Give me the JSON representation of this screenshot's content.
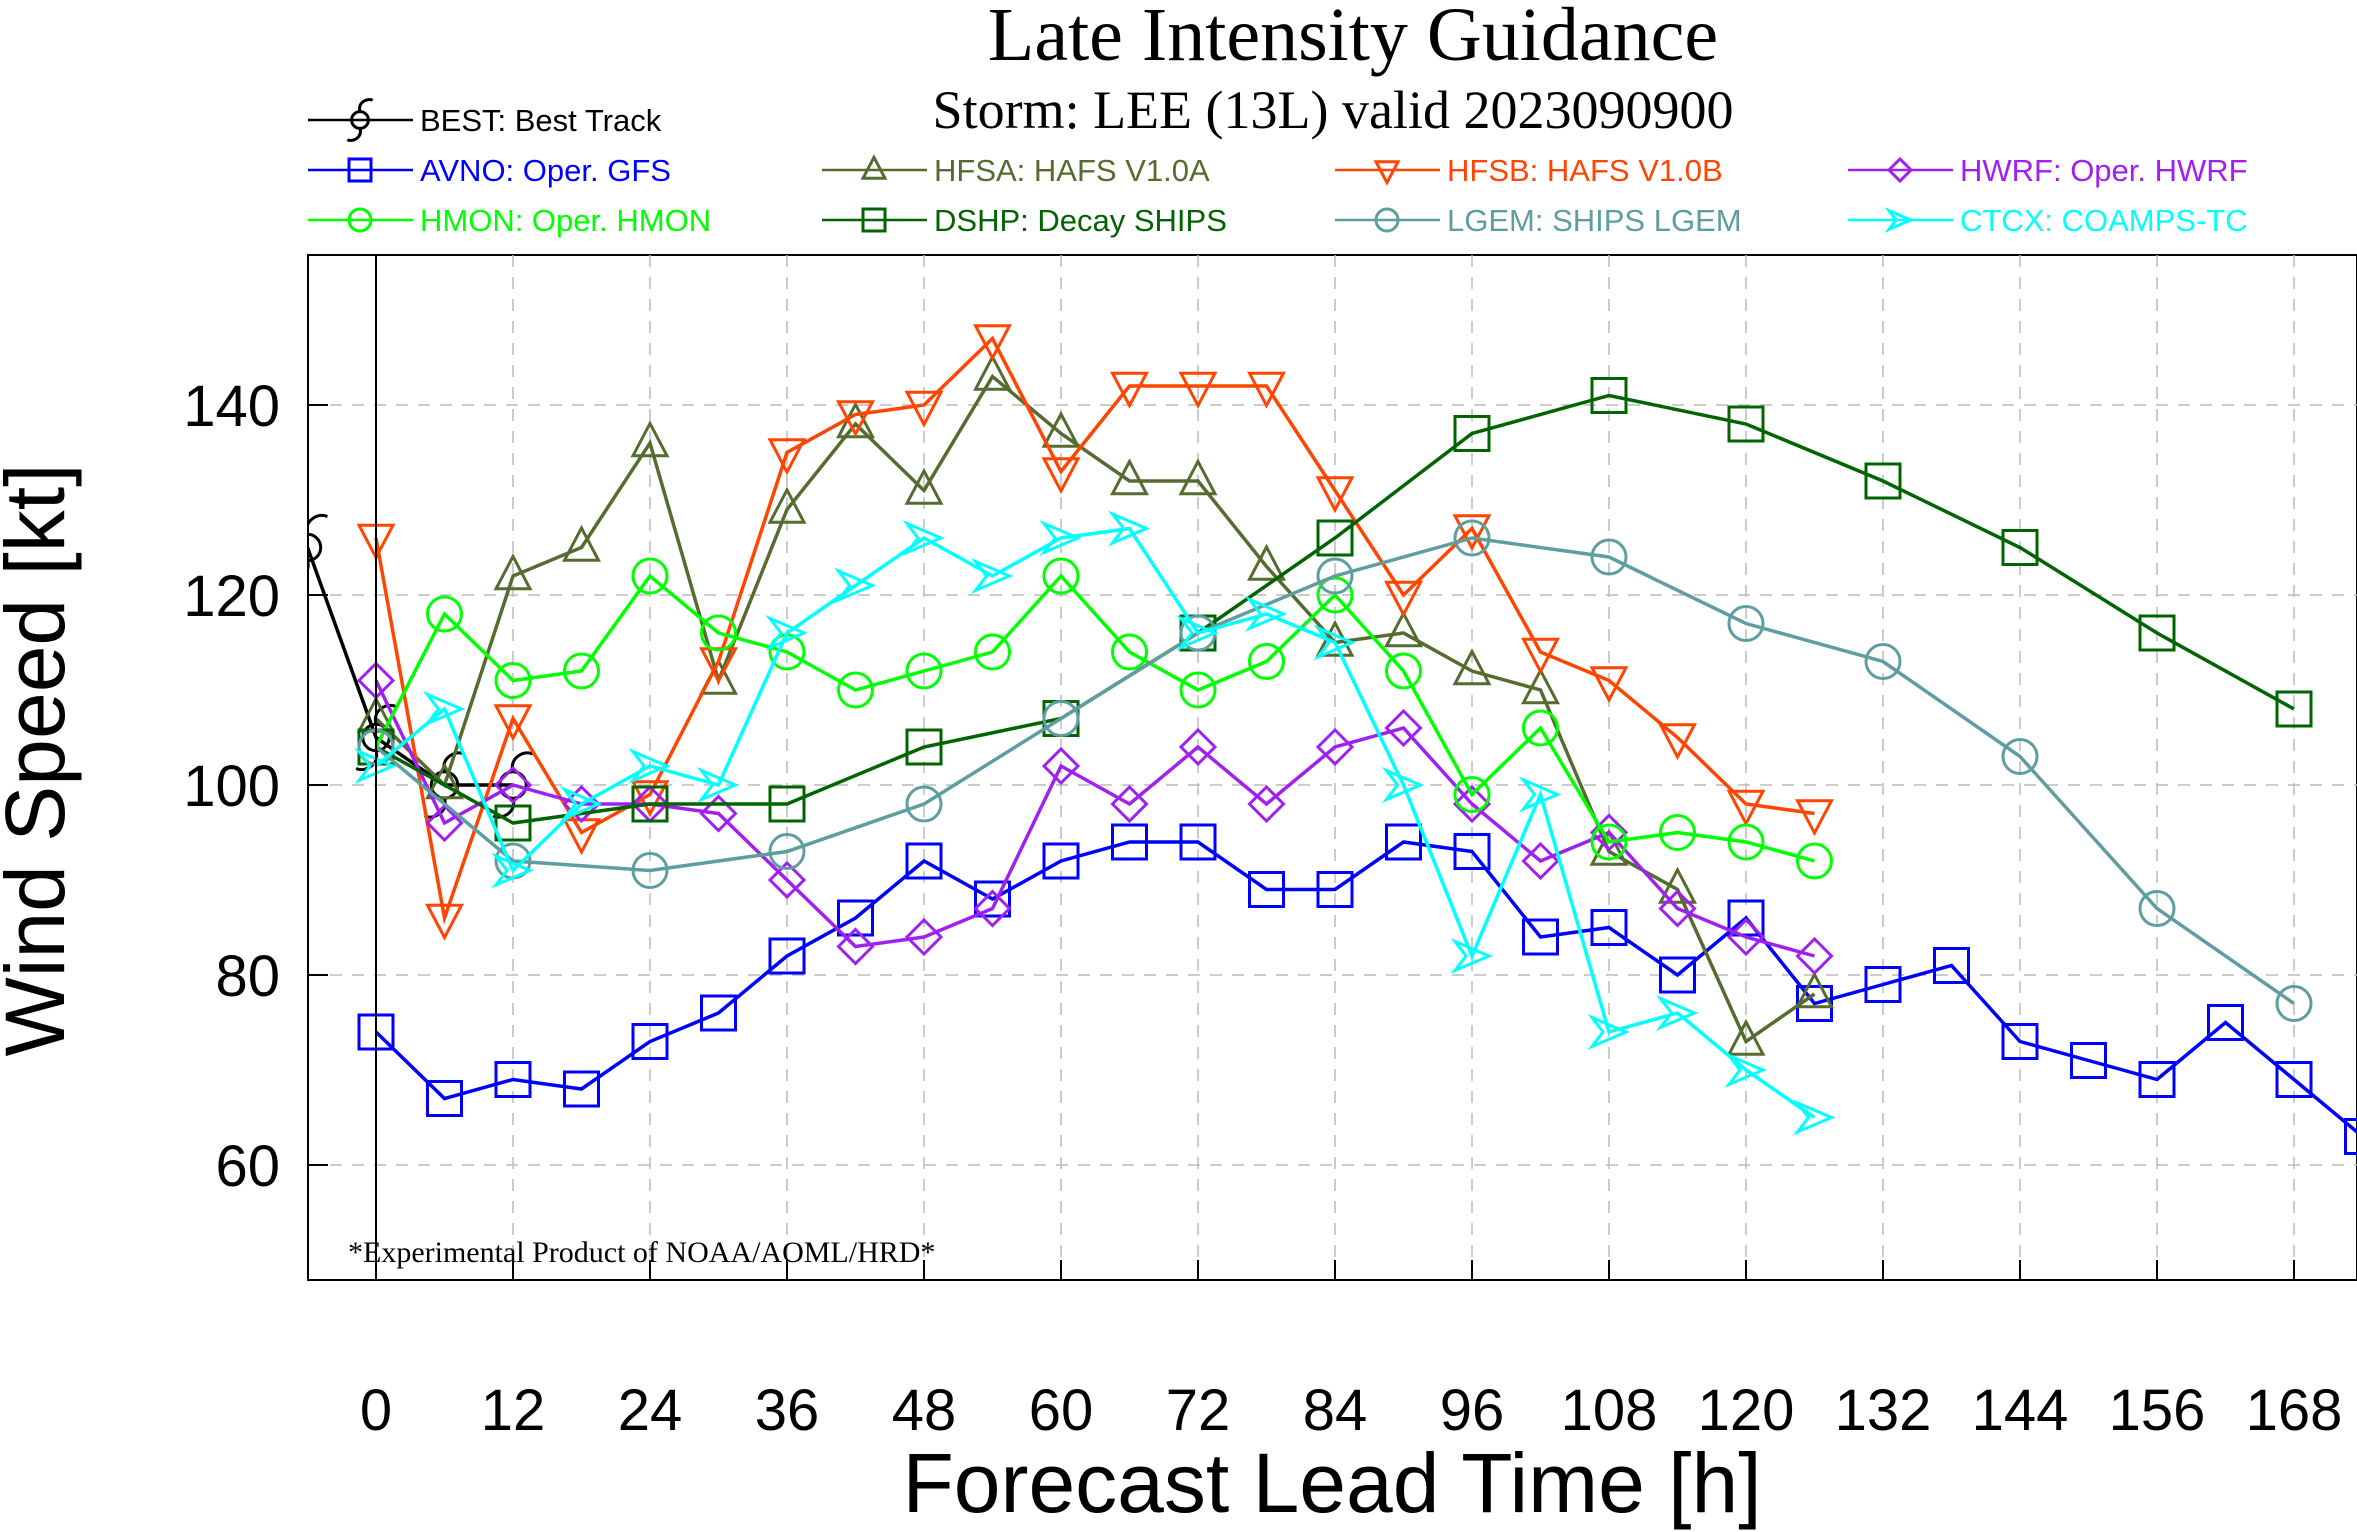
{
  "chart_data": {
    "type": "line",
    "title": "Late Intensity Guidance",
    "subtitle": "Storm: LEE (13L) valid 2023090900",
    "xlabel": "Forecast Lead Time [h]",
    "ylabel": "Wind Speed [kt]",
    "footnote": "*Experimental Product of NOAA/AOML/HRD*",
    "xlim": [
      -6,
      172
    ],
    "ylim": [
      48,
      156
    ],
    "xticks": [
      0,
      12,
      24,
      36,
      48,
      60,
      72,
      84,
      96,
      108,
      120,
      132,
      144,
      156,
      168
    ],
    "yticks": [
      60,
      80,
      100,
      120,
      140
    ],
    "grid": true,
    "legend_position": "top",
    "series": [
      {
        "id": "best",
        "name": "BEST: Best Track",
        "color": "#000000",
        "marker": "hurricane",
        "x": [
          -6,
          0,
          6,
          12
        ],
        "y": [
          125,
          105,
          100,
          100
        ]
      },
      {
        "id": "avno",
        "name": "AVNO: Oper. GFS",
        "color": "#0000ff",
        "marker": "square",
        "x": [
          0,
          6,
          12,
          18,
          24,
          30,
          36,
          42,
          48,
          54,
          60,
          66,
          72,
          78,
          84,
          90,
          96,
          102,
          108,
          114,
          120,
          126,
          132,
          138,
          144,
          150,
          156,
          162,
          168,
          174
        ],
        "y": [
          74,
          67,
          69,
          68,
          73,
          76,
          82,
          86,
          92,
          88,
          92,
          94,
          94,
          89,
          89,
          94,
          93,
          84,
          85,
          80,
          86,
          77,
          79,
          81,
          73,
          71,
          69,
          75,
          69,
          63
        ]
      },
      {
        "id": "hfsa",
        "name": "HFSA: HAFS V1.0A",
        "color": "#556b2f",
        "marker": "triangle-up",
        "x": [
          0,
          6,
          12,
          18,
          24,
          30,
          36,
          42,
          48,
          54,
          60,
          66,
          72,
          78,
          84,
          90,
          96,
          102,
          108,
          114,
          120,
          126
        ],
        "y": [
          107,
          100,
          122,
          125,
          136,
          111,
          129,
          138,
          131,
          143,
          137,
          132,
          132,
          123,
          115,
          116,
          112,
          110,
          93,
          89,
          73,
          78
        ]
      },
      {
        "id": "hfsb",
        "name": "HFSB: HAFS V1.0B",
        "color": "#ff4500",
        "marker": "triangle-down",
        "x": [
          0,
          6,
          12,
          18,
          24,
          30,
          36,
          42,
          48,
          54,
          60,
          66,
          72,
          78,
          84,
          90,
          96,
          102,
          108,
          114,
          120,
          126
        ],
        "y": [
          126,
          86,
          107,
          95,
          99,
          113,
          135,
          139,
          140,
          147,
          133,
          142,
          142,
          142,
          131,
          120,
          127,
          114,
          111,
          105,
          98,
          97
        ]
      },
      {
        "id": "hwrf",
        "name": "HWRF: Oper. HWRF",
        "color": "#a020f0",
        "marker": "diamond",
        "x": [
          0,
          6,
          12,
          18,
          24,
          30,
          36,
          42,
          48,
          54,
          60,
          66,
          72,
          78,
          84,
          90,
          96,
          102,
          108,
          114,
          120,
          126
        ],
        "y": [
          111,
          96,
          100,
          98,
          98,
          97,
          90,
          83,
          84,
          87,
          102,
          98,
          104,
          98,
          104,
          106,
          98,
          92,
          95,
          87,
          84,
          82
        ]
      },
      {
        "id": "hmon",
        "name": "HMON: Oper. HMON",
        "color": "#00ff00",
        "marker": "circle",
        "x": [
          0,
          6,
          12,
          18,
          24,
          30,
          36,
          42,
          48,
          54,
          60,
          66,
          72,
          78,
          84,
          90,
          96,
          102,
          108,
          114,
          120,
          126
        ],
        "y": [
          104,
          118,
          111,
          112,
          122,
          116,
          114,
          110,
          112,
          114,
          122,
          114,
          110,
          113,
          120,
          112,
          99,
          106,
          94,
          95,
          94,
          92
        ]
      },
      {
        "id": "dshp",
        "name": "DSHP: Decay SHIPS",
        "color": "#006400",
        "marker": "square",
        "x": [
          0,
          12,
          24,
          36,
          48,
          60,
          72,
          84,
          96,
          108,
          120,
          132,
          144,
          156,
          168
        ],
        "y": [
          104,
          96,
          98,
          98,
          104,
          107,
          116,
          126,
          137,
          141,
          138,
          132,
          125,
          116,
          108
        ]
      },
      {
        "id": "lgem",
        "name": "LGEM: SHIPS LGEM",
        "color": "#5f9ea0",
        "marker": "circle",
        "x": [
          0,
          12,
          24,
          36,
          48,
          60,
          72,
          84,
          96,
          108,
          120,
          132,
          144,
          156,
          168
        ],
        "y": [
          104,
          92,
          91,
          93,
          98,
          107,
          116,
          122,
          126,
          124,
          117,
          113,
          103,
          87,
          77
        ]
      },
      {
        "id": "ctcx",
        "name": "CTCX: COAMPS-TC",
        "color": "#00ffff",
        "marker": "arrow",
        "x": [
          0,
          6,
          12,
          18,
          24,
          30,
          36,
          42,
          48,
          54,
          60,
          66,
          72,
          78,
          84,
          90,
          96,
          102,
          108,
          114,
          120,
          126
        ],
        "y": [
          102,
          108,
          91,
          98,
          102,
          100,
          116,
          121,
          126,
          122,
          126,
          127,
          116,
          118,
          115,
          100,
          82,
          99,
          74,
          76,
          70,
          65
        ]
      }
    ]
  }
}
